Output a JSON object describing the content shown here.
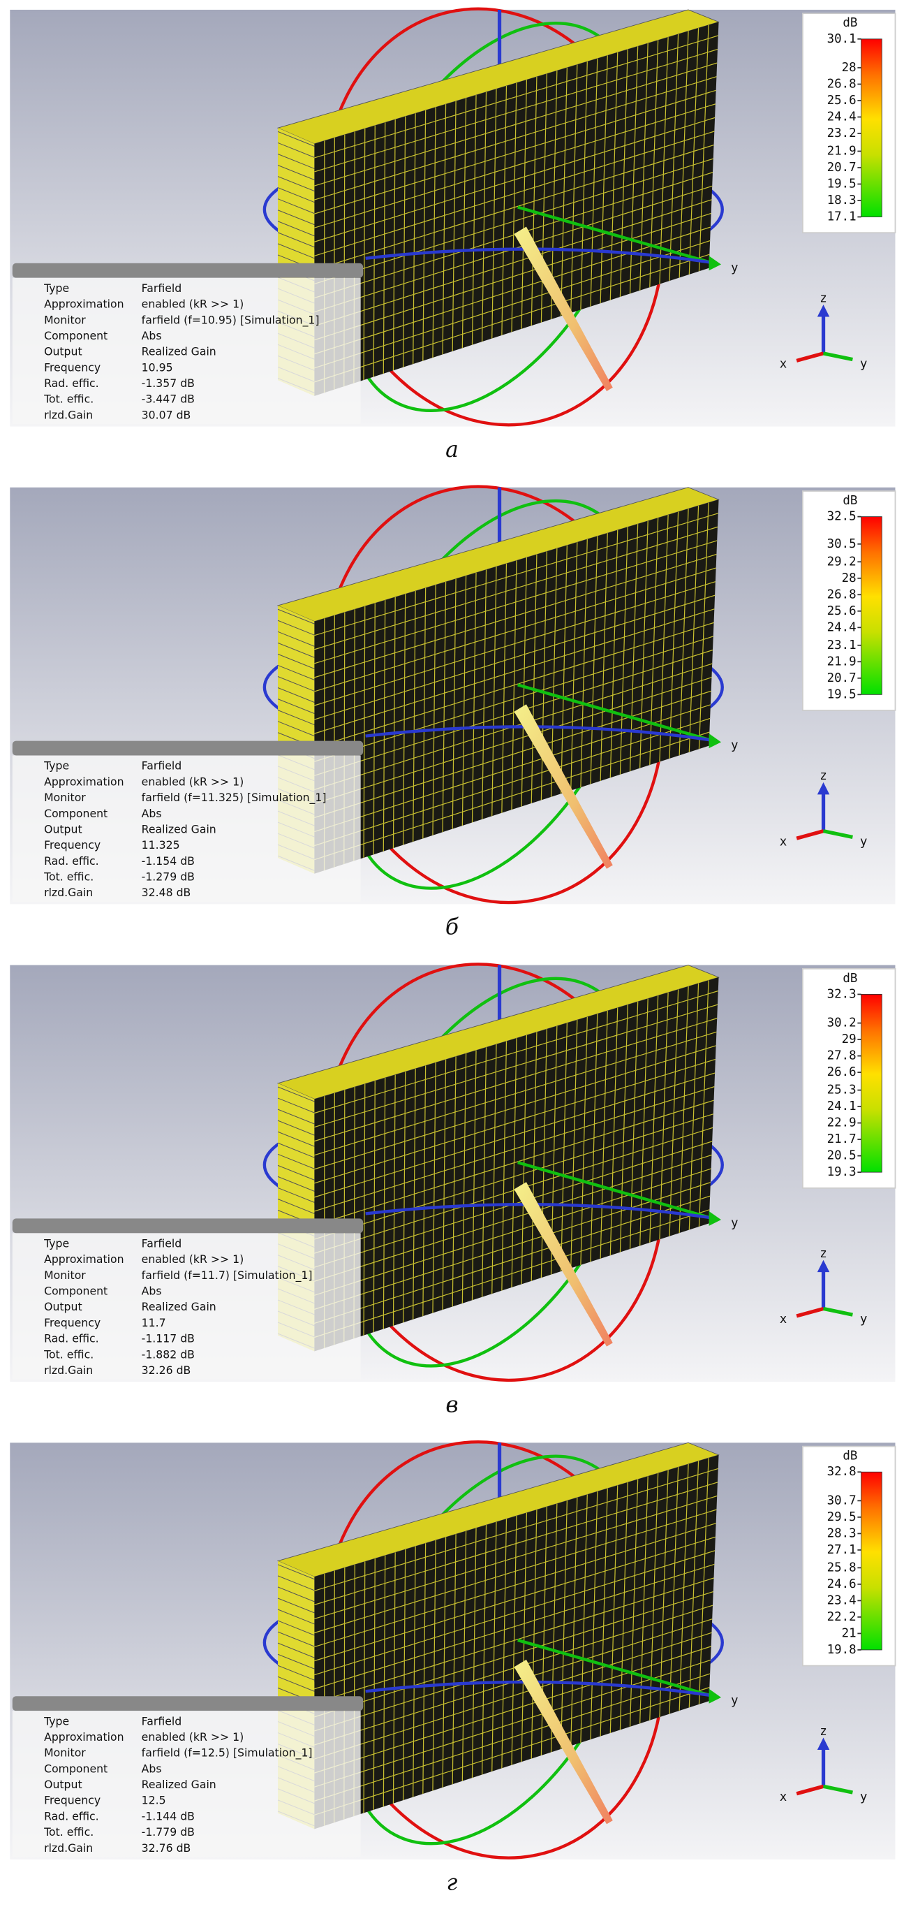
{
  "axis_labels": {
    "x": "x",
    "y": "y",
    "z": "z"
  },
  "panels": [
    {
      "caption": "а",
      "colorbar": {
        "unit": "dB",
        "ticks": [
          30.1,
          28,
          26.8,
          25.6,
          24.4,
          23.2,
          21.9,
          20.7,
          19.5,
          18.3,
          17.1
        ]
      },
      "info": [
        [
          "Type",
          "Farfield"
        ],
        [
          "Approximation",
          "enabled (kR >> 1)"
        ],
        [
          "Monitor",
          "farfield (f=10.95) [Simulation_1]"
        ],
        [
          "Component",
          "Abs"
        ],
        [
          "Output",
          "Realized Gain"
        ],
        [
          "Frequency",
          "10.95"
        ],
        [
          "Rad. effic.",
          "-1.357 dB"
        ],
        [
          "Tot. effic.",
          "-3.447 dB"
        ],
        [
          "rlzd.Gain",
          "30.07 dB"
        ]
      ]
    },
    {
      "caption": "б",
      "colorbar": {
        "unit": "dB",
        "ticks": [
          32.5,
          30.5,
          29.2,
          28,
          26.8,
          25.6,
          24.4,
          23.1,
          21.9,
          20.7,
          19.5
        ]
      },
      "info": [
        [
          "Type",
          "Farfield"
        ],
        [
          "Approximation",
          "enabled (kR >> 1)"
        ],
        [
          "Monitor",
          "farfield (f=11.325) [Simulation_1]"
        ],
        [
          "Component",
          "Abs"
        ],
        [
          "Output",
          "Realized Gain"
        ],
        [
          "Frequency",
          "11.325"
        ],
        [
          "Rad. effic.",
          "-1.154 dB"
        ],
        [
          "Tot. effic.",
          "-1.279 dB"
        ],
        [
          "rlzd.Gain",
          "32.48 dB"
        ]
      ]
    },
    {
      "caption": "в",
      "colorbar": {
        "unit": "dB",
        "ticks": [
          32.3,
          30.2,
          29,
          27.8,
          26.6,
          25.3,
          24.1,
          22.9,
          21.7,
          20.5,
          19.3
        ]
      },
      "info": [
        [
          "Type",
          "Farfield"
        ],
        [
          "Approximation",
          "enabled (kR >> 1)"
        ],
        [
          "Monitor",
          "farfield (f=11.7) [Simulation_1]"
        ],
        [
          "Component",
          "Abs"
        ],
        [
          "Output",
          "Realized Gain"
        ],
        [
          "Frequency",
          "11.7"
        ],
        [
          "Rad. effic.",
          "-1.117 dB"
        ],
        [
          "Tot. effic.",
          "-1.882 dB"
        ],
        [
          "rlzd.Gain",
          "32.26 dB"
        ]
      ]
    },
    {
      "caption": "г",
      "colorbar": {
        "unit": "dB",
        "ticks": [
          32.8,
          30.7,
          29.5,
          28.3,
          27.1,
          25.8,
          24.6,
          23.4,
          22.2,
          21,
          19.8
        ]
      },
      "info": [
        [
          "Type",
          "Farfield"
        ],
        [
          "Approximation",
          "enabled (kR >> 1)"
        ],
        [
          "Monitor",
          "farfield (f=12.5) [Simulation_1]"
        ],
        [
          "Component",
          "Abs"
        ],
        [
          "Output",
          "Realized Gain"
        ],
        [
          "Frequency",
          "12.5"
        ],
        [
          "Rad. effic.",
          "-1.144 dB"
        ],
        [
          "Tot. effic.",
          "-1.779 dB"
        ],
        [
          "rlzd.Gain",
          "32.76 dB"
        ]
      ]
    }
  ]
}
